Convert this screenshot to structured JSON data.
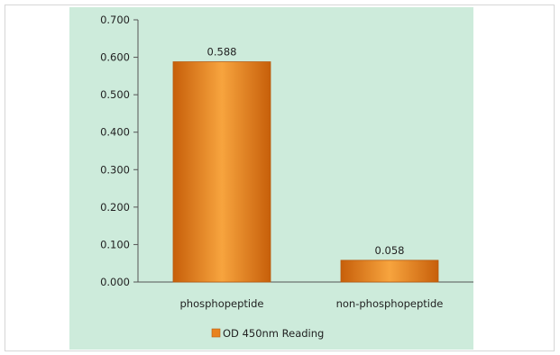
{
  "chart_data": {
    "type": "bar",
    "categories": [
      "phosphopeptide",
      "non-phosphopeptide"
    ],
    "series": [
      {
        "name": "OD 450nm Reading",
        "values": [
          0.588,
          0.058
        ],
        "color": "#e8821e"
      }
    ],
    "data_labels": [
      "0.588",
      "0.058"
    ],
    "y_ticks": [
      "0.000",
      "0.100",
      "0.200",
      "0.300",
      "0.400",
      "0.500",
      "0.600",
      "0.700"
    ],
    "ylim": [
      0,
      0.7
    ],
    "title": "",
    "xlabel": "",
    "ylabel": "",
    "grid": false,
    "legend_position": "bottom",
    "background_color": "#cdebdb"
  }
}
